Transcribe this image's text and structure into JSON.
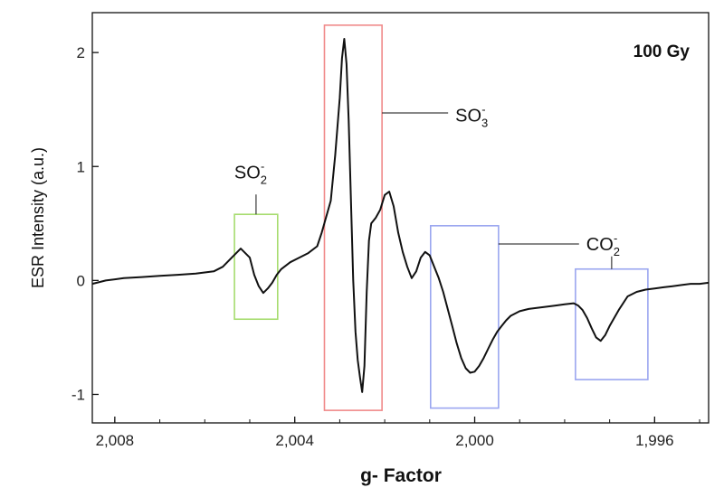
{
  "chart_data": {
    "type": "line",
    "title": "",
    "xlabel": "g- Factor",
    "ylabel": "ESR Intensity (a.u.)",
    "corner_label": "100 Gy",
    "x_reversed": true,
    "xlim": [
      2.0085,
      1.9948
    ],
    "ylim": [
      -1.25,
      2.35
    ],
    "grid": false,
    "x_ticks": [
      {
        "value": 2.008,
        "label": "2,008"
      },
      {
        "value": 2.004,
        "label": "2,004"
      },
      {
        "value": 2.0,
        "label": "2,000"
      },
      {
        "value": 1.996,
        "label": "1,996"
      }
    ],
    "y_ticks": [
      {
        "value": -1,
        "label": "-1"
      },
      {
        "value": 0,
        "label": "0"
      },
      {
        "value": 1,
        "label": "1"
      },
      {
        "value": 2,
        "label": "2"
      }
    ],
    "series": [
      {
        "color": "#111111",
        "x": [
          2.0085,
          2.0082,
          2.0078,
          2.0074,
          2.007,
          2.0066,
          2.0062,
          2.0058,
          2.0056,
          2.0054,
          2.0052,
          2.005,
          2.0049,
          2.0048,
          2.0047,
          2.0046,
          2.0045,
          2.0044,
          2.0043,
          2.0041,
          2.0039,
          2.0037,
          2.0035,
          2.0034,
          2.0032,
          2.0031,
          2.003,
          2.00295,
          2.0029,
          2.00285,
          2.0028,
          2.00275,
          2.0027,
          2.00265,
          2.0026,
          2.00255,
          2.0025,
          2.00245,
          2.0024,
          2.00235,
          2.0023,
          2.0022,
          2.0021,
          2.002,
          2.0019,
          2.0018,
          2.0017,
          2.0016,
          2.0015,
          2.0014,
          2.0013,
          2.0012,
          2.0011,
          2.001,
          2.0009,
          2.0008,
          2.0007,
          2.0006,
          2.0005,
          2.0004,
          2.0003,
          2.0002,
          2.0001,
          2.0,
          1.9999,
          1.9998,
          1.9997,
          1.9996,
          1.9995,
          1.9994,
          1.9993,
          1.9992,
          1.999,
          1.9988,
          1.9986,
          1.9984,
          1.9982,
          1.998,
          1.9978,
          1.9977,
          1.9976,
          1.9975,
          1.9974,
          1.9973,
          1.9972,
          1.9971,
          1.997,
          1.9968,
          1.9966,
          1.9964,
          1.9962,
          1.996,
          1.9958,
          1.9956,
          1.9954,
          1.9952,
          1.995,
          1.9948
        ],
        "y": [
          -0.03,
          0.0,
          0.02,
          0.03,
          0.04,
          0.05,
          0.06,
          0.08,
          0.12,
          0.2,
          0.28,
          0.2,
          0.05,
          -0.05,
          -0.11,
          -0.07,
          -0.02,
          0.05,
          0.1,
          0.16,
          0.2,
          0.24,
          0.3,
          0.42,
          0.7,
          1.1,
          1.6,
          1.95,
          2.12,
          1.9,
          1.4,
          0.7,
          0.0,
          -0.45,
          -0.7,
          -0.85,
          -0.98,
          -0.75,
          -0.1,
          0.35,
          0.5,
          0.55,
          0.62,
          0.75,
          0.78,
          0.65,
          0.42,
          0.25,
          0.12,
          0.02,
          0.08,
          0.2,
          0.25,
          0.22,
          0.12,
          0.02,
          -0.1,
          -0.25,
          -0.4,
          -0.55,
          -0.68,
          -0.77,
          -0.81,
          -0.8,
          -0.75,
          -0.68,
          -0.6,
          -0.52,
          -0.45,
          -0.4,
          -0.35,
          -0.31,
          -0.27,
          -0.25,
          -0.24,
          -0.23,
          -0.22,
          -0.21,
          -0.2,
          -0.22,
          -0.26,
          -0.33,
          -0.42,
          -0.5,
          -0.53,
          -0.48,
          -0.4,
          -0.26,
          -0.14,
          -0.1,
          -0.08,
          -0.07,
          -0.06,
          -0.05,
          -0.04,
          -0.03,
          -0.03,
          -0.02
        ]
      }
    ],
    "annotations": [
      {
        "main": "SO",
        "sub": "2",
        "sup": "-",
        "box_color": "#a6dc6e",
        "x_range": [
          2.00534,
          2.00438
        ],
        "y_range": [
          -0.34,
          0.58
        ],
        "label_x": 2.00498,
        "label_y": 0.95
      },
      {
        "main": "SO",
        "sub": "3",
        "sup": "-",
        "box_color": "#f08a8a",
        "x_range": [
          2.00334,
          2.00206
        ],
        "y_range": [
          -1.14,
          2.24
        ],
        "label_x": 2.00043,
        "label_y": 1.45
      },
      {
        "main": "CO",
        "sub": "2",
        "sup": "-",
        "box_color": "#9aa6f0",
        "x_range": [
          2.00098,
          1.99947
        ],
        "y_range": [
          -1.12,
          0.48
        ],
        "label_x": 1.99752,
        "label_y": 0.32
      },
      {
        "main": "",
        "sub": "",
        "sup": "",
        "box_color": "#9aa6f0",
        "x_range": [
          1.99776,
          1.99615
        ],
        "y_range": [
          -0.87,
          0.1
        ]
      }
    ]
  }
}
